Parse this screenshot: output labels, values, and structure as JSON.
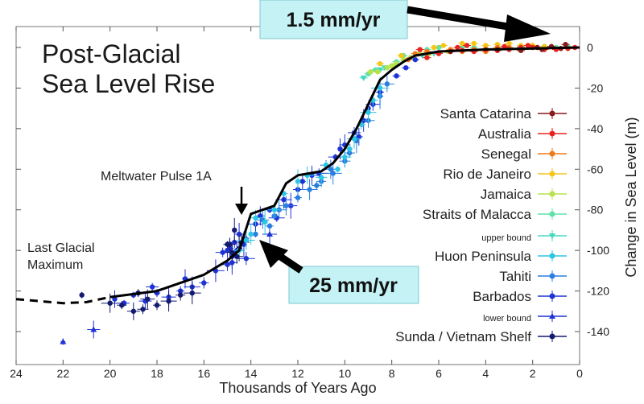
{
  "chart_data": {
    "type": "scatter",
    "title": [
      "Post-Glacial",
      "Sea Level Rise"
    ],
    "xlabel": "Thousands of Years Ago",
    "ylabel": "Change in Sea Level (m)",
    "xlim": [
      24,
      0
    ],
    "ylim": [
      -150,
      5
    ],
    "xticks": [
      24,
      22,
      20,
      18,
      16,
      14,
      12,
      10,
      8,
      6,
      4,
      2,
      0
    ],
    "yticks": [
      0,
      -20,
      -40,
      -60,
      -80,
      -100,
      -120,
      -140
    ],
    "legend_position": "right",
    "legend": [
      {
        "label": "Santa Catarina",
        "color": "#8b1a1a",
        "marker": "circle",
        "small": false
      },
      {
        "label": "Australia",
        "color": "#e8231f",
        "marker": "circle",
        "small": false
      },
      {
        "label": "Senegal",
        "color": "#f07a1a",
        "marker": "circle",
        "small": false
      },
      {
        "label": "Rio de Janeiro",
        "color": "#f5c518",
        "marker": "circle",
        "small": false
      },
      {
        "label": "Jamaica",
        "color": "#b6e34c",
        "marker": "circle",
        "small": false
      },
      {
        "label": "Straits of Malacca",
        "color": "#5fe2a8",
        "marker": "circle",
        "small": false
      },
      {
        "label": "upper bound",
        "color": "#45d8c0",
        "marker": "triangle-down",
        "small": true
      },
      {
        "label": "Huon Peninsula",
        "color": "#2bc6e4",
        "marker": "circle",
        "small": false
      },
      {
        "label": "Tahiti",
        "color": "#2a7fe0",
        "marker": "circle",
        "small": false
      },
      {
        "label": "Barbados",
        "color": "#1f33d4",
        "marker": "circle",
        "small": false
      },
      {
        "label": "lower bound",
        "color": "#1f33d4",
        "marker": "triangle-up",
        "small": true
      },
      {
        "label": "Sunda / Vietnam Shelf",
        "color": "#141a6e",
        "marker": "circle",
        "small": false
      }
    ],
    "trend_solid": [
      [
        20,
        -123
      ],
      [
        18,
        -120
      ],
      [
        16,
        -112
      ],
      [
        15,
        -105
      ],
      [
        14.5,
        -100
      ],
      [
        14,
        -82
      ],
      [
        13.5,
        -80
      ],
      [
        13,
        -78
      ],
      [
        12.5,
        -67
      ],
      [
        12,
        -63
      ],
      [
        11,
        -61
      ],
      [
        10.5,
        -57
      ],
      [
        10,
        -50
      ],
      [
        9.5,
        -40
      ],
      [
        9,
        -28
      ],
      [
        8.5,
        -16
      ],
      [
        8,
        -11
      ],
      [
        7.5,
        -7
      ],
      [
        7,
        -4
      ],
      [
        6,
        -2
      ],
      [
        4,
        -1
      ],
      [
        2,
        -0.5
      ],
      [
        0,
        0
      ]
    ],
    "trend_dashed": [
      [
        24,
        -124
      ],
      [
        23,
        -125
      ],
      [
        22,
        -126
      ],
      [
        21,
        -125.5
      ],
      [
        20,
        -123
      ]
    ],
    "series_points": {
      "Santa Catarina": [
        [
          1.8,
          0
        ],
        [
          1.2,
          0.5
        ],
        [
          1.6,
          -1
        ],
        [
          2.5,
          -1.5
        ],
        [
          0.8,
          -0.5
        ],
        [
          5.5,
          -2
        ],
        [
          3.5,
          -1
        ],
        [
          0.6,
          1.5
        ]
      ],
      "Australia": [
        [
          6.5,
          -5
        ],
        [
          6,
          -3
        ],
        [
          5.5,
          -2
        ],
        [
          5,
          -1.5
        ],
        [
          4.5,
          -2
        ],
        [
          4,
          -1
        ],
        [
          3.5,
          -1.5
        ],
        [
          3,
          -1
        ],
        [
          2.5,
          0
        ],
        [
          2,
          0
        ],
        [
          1.5,
          -1
        ],
        [
          1,
          -1
        ],
        [
          0.5,
          -0.5
        ],
        [
          6.8,
          -1
        ],
        [
          5.2,
          0
        ],
        [
          3.2,
          0.5
        ],
        [
          2.2,
          1
        ],
        [
          4.8,
          1
        ],
        [
          0.2,
          0
        ]
      ],
      "Senegal": [
        [
          7,
          -3
        ],
        [
          6.5,
          -2
        ],
        [
          6,
          -2.5
        ],
        [
          5.5,
          -1
        ],
        [
          5,
          -2
        ],
        [
          4.5,
          -1
        ],
        [
          4,
          -2
        ],
        [
          3.5,
          0
        ],
        [
          3,
          0
        ],
        [
          2.5,
          -1
        ],
        [
          7.3,
          -6
        ]
      ],
      "Rio de Janeiro": [
        [
          6.2,
          0
        ],
        [
          5.8,
          1
        ],
        [
          5,
          2
        ],
        [
          4.5,
          2
        ],
        [
          4,
          1
        ],
        [
          3.5,
          1.5
        ],
        [
          3,
          2
        ],
        [
          2.5,
          1
        ],
        [
          2,
          1
        ],
        [
          1.5,
          0.5
        ],
        [
          8.5,
          -8
        ],
        [
          7.6,
          -4
        ]
      ],
      "Jamaica": [
        [
          8.6,
          -12
        ],
        [
          8.2,
          -10
        ],
        [
          8,
          -9
        ],
        [
          7.5,
          -6
        ],
        [
          7.2,
          -5
        ],
        [
          6.8,
          -3
        ],
        [
          6.4,
          -3
        ],
        [
          5.6,
          -2
        ],
        [
          7.8,
          -8
        ],
        [
          8.9,
          -12
        ]
      ],
      "Straits of Malacca": [
        [
          7.8,
          -7
        ],
        [
          7.5,
          -4
        ],
        [
          7,
          -3
        ],
        [
          6.5,
          -1
        ],
        [
          6,
          0
        ],
        [
          5.5,
          -1
        ],
        [
          5,
          0
        ],
        [
          4.5,
          0
        ],
        [
          4,
          -0.5
        ],
        [
          3.5,
          -1
        ],
        [
          3,
          0
        ],
        [
          2.5,
          0.5
        ],
        [
          2,
          0
        ],
        [
          1.5,
          0.5
        ],
        [
          1,
          0
        ],
        [
          0.5,
          0.5
        ],
        [
          9,
          -13
        ],
        [
          8.7,
          -11
        ]
      ],
      "upper bound": [
        [
          8.5,
          -11
        ],
        [
          8.3,
          -10
        ],
        [
          7.9,
          -9
        ],
        [
          9.2,
          -15
        ],
        [
          6.7,
          -4
        ],
        [
          6.2,
          -3
        ]
      ],
      "Huon Peninsula": [
        [
          10.3,
          -60
        ],
        [
          10,
          -54
        ],
        [
          9.8,
          -50
        ],
        [
          9.6,
          -45
        ],
        [
          9.3,
          -38
        ],
        [
          9,
          -32
        ],
        [
          8.8,
          -26
        ],
        [
          8.5,
          -20
        ],
        [
          11,
          -64
        ],
        [
          12,
          -66
        ],
        [
          13,
          -80
        ],
        [
          13.4,
          -86
        ],
        [
          13.8,
          -84
        ],
        [
          12.6,
          -72
        ],
        [
          11.6,
          -63
        ],
        [
          10.8,
          -58
        ],
        [
          14.2,
          -95
        ],
        [
          14.5,
          -100
        ],
        [
          14,
          -92
        ]
      ],
      "Tahiti": [
        [
          13.8,
          -92
        ],
        [
          13.5,
          -85
        ],
        [
          13,
          -83
        ],
        [
          12.5,
          -78
        ],
        [
          12,
          -74
        ],
        [
          11.5,
          -70
        ],
        [
          11,
          -66
        ],
        [
          10.5,
          -62
        ],
        [
          10,
          -56
        ],
        [
          9.5,
          -46
        ],
        [
          9,
          -36
        ],
        [
          8.5,
          -24
        ],
        [
          8.2,
          -18
        ],
        [
          13.2,
          -88
        ],
        [
          12.8,
          -80
        ],
        [
          11.2,
          -68
        ],
        [
          10.6,
          -60
        ],
        [
          9.8,
          -52
        ]
      ],
      "Barbados": [
        [
          19,
          -122
        ],
        [
          18.5,
          -125
        ],
        [
          18,
          -121
        ],
        [
          17.5,
          -123
        ],
        [
          17,
          -120
        ],
        [
          16.5,
          -118
        ],
        [
          16,
          -116
        ],
        [
          15.5,
          -110
        ],
        [
          15,
          -107
        ],
        [
          14.8,
          -103
        ],
        [
          14.6,
          -100
        ],
        [
          14.3,
          -97
        ],
        [
          13.8,
          -87
        ],
        [
          13.2,
          -80
        ],
        [
          12.6,
          -75
        ],
        [
          12,
          -70
        ],
        [
          11.4,
          -63
        ],
        [
          10.8,
          -58
        ],
        [
          10.2,
          -50
        ],
        [
          9.6,
          -42
        ],
        [
          9.2,
          -36
        ],
        [
          8.8,
          -28
        ],
        [
          8.5,
          -22
        ],
        [
          7.8,
          -14
        ],
        [
          7.4,
          -10
        ],
        [
          7,
          -6
        ],
        [
          19.4,
          -126
        ],
        [
          19.8,
          -124
        ],
        [
          18.2,
          -118
        ],
        [
          16.8,
          -114
        ],
        [
          15.2,
          -101
        ],
        [
          14.9,
          -99
        ],
        [
          14.7,
          -96
        ],
        [
          14.5,
          -92
        ],
        [
          14.2,
          -104
        ],
        [
          14.8,
          -106
        ],
        [
          15,
          -100
        ],
        [
          12.3,
          -78
        ],
        [
          11.8,
          -66
        ],
        [
          10.4,
          -54
        ],
        [
          9.4,
          -44
        ],
        [
          12.9,
          -84
        ],
        [
          13.6,
          -83
        ],
        [
          11.1,
          -62
        ],
        [
          10.0,
          -48
        ],
        [
          9.0,
          -30
        ]
      ],
      "lower bound": [
        [
          22,
          -145
        ],
        [
          20.7,
          -139
        ],
        [
          14.2,
          -94
        ],
        [
          13.2,
          -92
        ]
      ],
      "Sunda / Vietnam Shelf": [
        [
          21.2,
          -122
        ],
        [
          19,
          -130
        ],
        [
          18.8,
          -121
        ],
        [
          18.4,
          -124
        ],
        [
          18,
          -127
        ],
        [
          17.5,
          -125
        ],
        [
          17,
          -122
        ],
        [
          16.5,
          -121
        ],
        [
          14.9,
          -97
        ],
        [
          14.7,
          -90
        ],
        [
          14.6,
          -103
        ],
        [
          14.5,
          -99
        ],
        [
          14.8,
          -101
        ],
        [
          15,
          -97
        ],
        [
          14.4,
          -96
        ],
        [
          19.5,
          -127
        ],
        [
          20,
          -126
        ],
        [
          18.6,
          -129
        ]
      ]
    }
  },
  "annotations": {
    "meltwater_label": "Meltwater Pulse 1A",
    "lgm_line1": "Last Glacial",
    "lgm_line2": "Maximum"
  },
  "callouts": {
    "top": "1.5 mm/yr",
    "bottom": "25 mm/yr",
    "box_fill": "#c5f2f5",
    "box_stroke": "#7cc9d0"
  },
  "colors": {
    "trend": "#000000",
    "axes": "#444444",
    "background": "#ffffff"
  }
}
